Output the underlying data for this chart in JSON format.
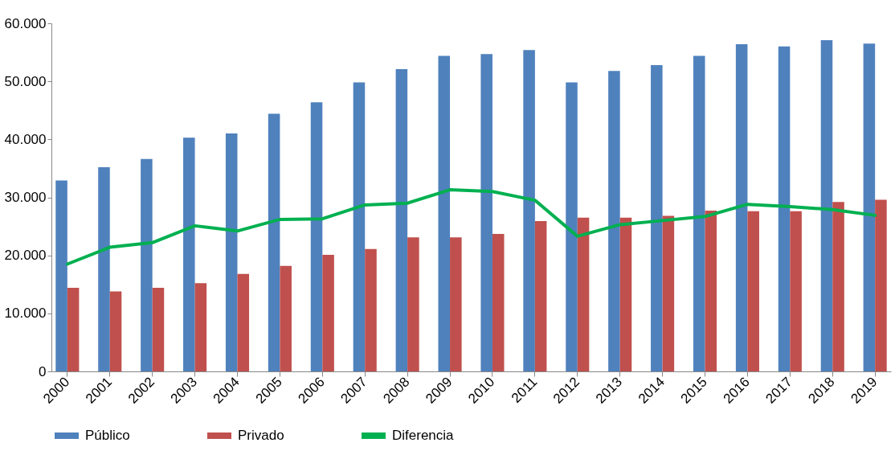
{
  "chart_data": {
    "type": "bar",
    "categories": [
      "2000",
      "2001",
      "2002",
      "2003",
      "2004",
      "2005",
      "2006",
      "2007",
      "2008",
      "2009",
      "2010",
      "2011",
      "2012",
      "2013",
      "2014",
      "2015",
      "2016",
      "2017",
      "2018",
      "2019"
    ],
    "series": [
      {
        "name": "Público",
        "color": "#4f81bd",
        "values": [
          32900,
          35200,
          36600,
          40300,
          41000,
          44400,
          46400,
          49800,
          52100,
          54400,
          54700,
          55400,
          49800,
          51800,
          52800,
          54400,
          56400,
          56000,
          57100,
          56500
        ]
      },
      {
        "name": "Privado",
        "color": "#c0504d",
        "values": [
          14400,
          13800,
          14400,
          15200,
          16800,
          18200,
          20100,
          21100,
          23100,
          23100,
          23700,
          25900,
          26500,
          26500,
          26800,
          27700,
          27600,
          27600,
          29200,
          29600
        ]
      },
      {
        "name": "Diferencia",
        "type": "line",
        "color": "#00b050",
        "values": [
          18500,
          21400,
          22200,
          25100,
          24200,
          26200,
          26300,
          28700,
          29000,
          31300,
          31000,
          29500,
          23300,
          25300,
          26000,
          26700,
          28800,
          28400,
          27900,
          26900
        ]
      }
    ],
    "ylim": [
      0,
      60000
    ],
    "yticks": [
      0,
      {
        "value": 10000,
        "label": "10.000"
      },
      {
        "value": 20000,
        "label": "20.000"
      },
      {
        "value": 30000,
        "label": "30.000"
      },
      {
        "value": 40000,
        "label": "40.000"
      },
      {
        "value": 50000,
        "label": "50.000"
      },
      {
        "value": 60000,
        "label": "60.000"
      }
    ],
    "grid": false,
    "legend": "bottom"
  }
}
